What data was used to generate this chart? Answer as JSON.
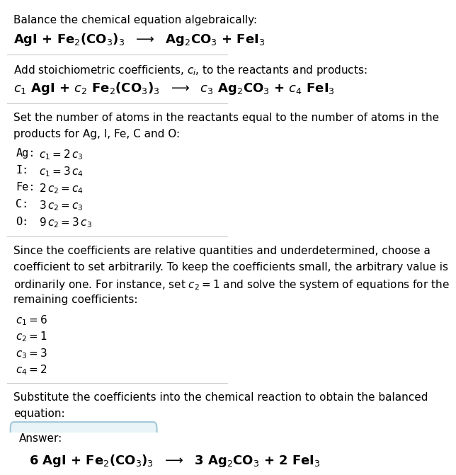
{
  "background_color": "#ffffff",
  "text_color": "#000000",
  "answer_box_color": "#e8f4f8",
  "answer_box_border": "#a0c8d8",
  "line1_header": "Balance the chemical equation algebraically:",
  "line2_header": "AgI + Fe$_2$(CO$_3$)$_3$  $\\longrightarrow$  Ag$_2$CO$_3$ + FeI$_3$",
  "line1_sec2": "Add stoichiometric coefficients, $c_i$, to the reactants and products:",
  "line2_sec2": "$c_1$ AgI + $c_2$ Fe$_2$(CO$_3$)$_3$  $\\longrightarrow$  $c_3$ Ag$_2$CO$_3$ + $c_4$ FeI$_3$",
  "sec3_lines": [
    "Set the number of atoms in the reactants equal to the number of atoms in the",
    "products for Ag, I, Fe, C and O:"
  ],
  "eq_rows": [
    [
      "Ag:",
      "$c_1 = 2\\,c_3$"
    ],
    [
      "I:",
      "$c_1 = 3\\,c_4$"
    ],
    [
      "Fe:",
      "$2\\,c_2 = c_4$"
    ],
    [
      "C:",
      "$3\\,c_2 = c_3$"
    ],
    [
      "O:",
      "$9\\,c_2 = 3\\,c_3$"
    ]
  ],
  "sec4_lines": [
    "Since the coefficients are relative quantities and underdetermined, choose a",
    "coefficient to set arbitrarily. To keep the coefficients small, the arbitrary value is",
    "ordinarily one. For instance, set $c_2 = 1$ and solve the system of equations for the",
    "remaining coefficients:"
  ],
  "coeff_rows": [
    "$c_1 = 6$",
    "$c_2 = 1$",
    "$c_3 = 3$",
    "$c_4 = 2$"
  ],
  "sec5_lines": [
    "Substitute the coefficients into the chemical reaction to obtain the balanced",
    "equation:"
  ],
  "answer_label": "Answer:",
  "answer_eq": "6 AgI + Fe$_2$(CO$_3$)$_3$  $\\longrightarrow$  3 Ag$_2$CO$_3$ + 2 FeI$_3$"
}
